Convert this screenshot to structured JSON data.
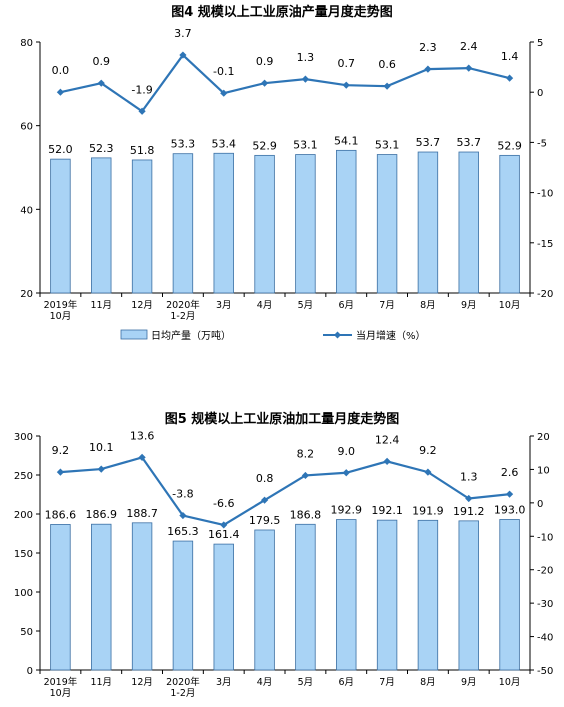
{
  "chart_data": [
    {
      "type": "bar",
      "title": "图4  规模以上工业原油产量月度走势图",
      "categories": [
        "2019年\n10月",
        "11月",
        "12月",
        "2020年\n1-2月",
        "3月",
        "4月",
        "5月",
        "6月",
        "7月",
        "8月",
        "9月",
        "10月"
      ],
      "series": [
        {
          "name": "日均产量（万吨）",
          "type": "bar",
          "axis": "left",
          "values": [
            52.0,
            52.3,
            51.8,
            53.3,
            53.4,
            52.9,
            53.1,
            54.1,
            53.1,
            53.7,
            53.7,
            52.9
          ]
        },
        {
          "name": "当月增速（%）",
          "type": "line",
          "axis": "right",
          "values": [
            0.0,
            0.9,
            -1.9,
            3.7,
            -0.1,
            0.9,
            1.3,
            0.7,
            0.6,
            2.3,
            2.4,
            1.4
          ]
        }
      ],
      "ylim_left": [
        20,
        80
      ],
      "yticks_left": [
        20,
        40,
        60,
        80
      ],
      "ylim_right": [
        -20,
        5
      ],
      "yticks_right": [
        -20,
        -15,
        -10,
        -5,
        0,
        5
      ],
      "legend_position": "bottom",
      "bar_color": "#a9d3f5",
      "line_color": "#2e75b6"
    },
    {
      "type": "bar",
      "title": "图5  规模以上工业原油加工量月度走势图",
      "categories": [
        "2019年\n10月",
        "11月",
        "12月",
        "2020年\n1-2月",
        "3月",
        "4月",
        "5月",
        "6月",
        "7月",
        "8月",
        "9月",
        "10月"
      ],
      "series": [
        {
          "type": "bar",
          "axis": "left",
          "values": [
            186.6,
            186.9,
            188.7,
            165.3,
            161.4,
            179.5,
            186.8,
            192.9,
            192.1,
            191.9,
            191.2,
            193.0
          ]
        },
        {
          "type": "line",
          "axis": "right",
          "values": [
            9.2,
            10.1,
            13.6,
            -3.8,
            -6.6,
            0.8,
            8.2,
            9.0,
            12.4,
            9.2,
            1.3,
            2.6
          ]
        }
      ],
      "ylim_left": [
        0,
        300
      ],
      "yticks_left": [
        0,
        50,
        100,
        150,
        200,
        250,
        300
      ],
      "ylim_right": [
        -50,
        20
      ],
      "yticks_right": [
        -50,
        -40,
        -30,
        -20,
        -10,
        0,
        10,
        20
      ],
      "bar_color": "#a9d3f5",
      "line_color": "#2e75b6"
    }
  ]
}
